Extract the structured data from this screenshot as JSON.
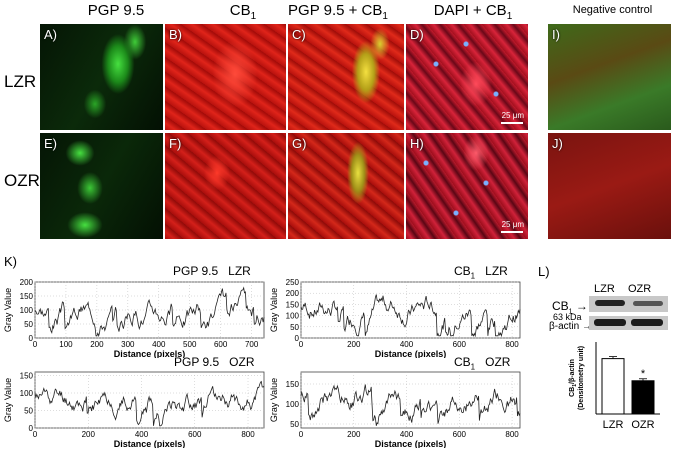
{
  "columns": {
    "pgp": "PGP 9.5",
    "cb": "CB",
    "cb_sub": "1",
    "merge_a": "PGP 9.5 + CB",
    "merge_sub": "1",
    "dapi_a": "DAPI + CB",
    "dapi_sub": "1",
    "neg": "Negative control"
  },
  "rows": {
    "lzr": "LZR",
    "ozr": "OZR"
  },
  "panels": {
    "A": "A)",
    "B": "B)",
    "C": "C)",
    "D": "D)",
    "E": "E)",
    "F": "F)",
    "G": "G)",
    "H": "H)",
    "I": "I)",
    "J": "J)"
  },
  "scale_bar": "25 μm",
  "section_k": "K)",
  "section_l": "L)",
  "profiles": [
    {
      "title_a": "PGP 9.5",
      "title_b": "LZR",
      "sub": "",
      "ylabel": "Gray Value",
      "xlabel": "Distance (pixels)",
      "yticks": [
        "0",
        "50",
        "100",
        "150",
        "200"
      ],
      "ymax": 200,
      "xticks": [
        "0",
        "100",
        "200",
        "300",
        "400",
        "500",
        "600",
        "700"
      ],
      "xmax": 740,
      "seed": 3
    },
    {
      "title_a": "CB",
      "title_b": "LZR",
      "sub": "1",
      "ylabel": "Gray Value",
      "xlabel": "Distance (pixels)",
      "yticks": [
        "0",
        "50",
        "100",
        "150",
        "200",
        "250"
      ],
      "ymax": 250,
      "xticks": [
        "0",
        "200",
        "400",
        "600",
        "800"
      ],
      "xmax": 830,
      "seed": 7
    },
    {
      "title_a": "PGP 9.5",
      "title_b": "OZR",
      "sub": "",
      "ylabel": "Gray Value",
      "xlabel": "Distance (pixels)",
      "yticks": [
        "0",
        "50",
        "100",
        "150"
      ],
      "ymax": 160,
      "xticks": [
        "0",
        "200",
        "400",
        "600",
        "800"
      ],
      "xmax": 860,
      "seed": 11
    },
    {
      "title_a": "CB",
      "title_b": "OZR",
      "sub": "1",
      "ylabel": "Gray Value",
      "xlabel": "Distance (pixels)",
      "yticks": [
        "50",
        "100",
        "150"
      ],
      "ymax": 180,
      "ymin": 40,
      "xticks": [
        "0",
        "200",
        "400",
        "600",
        "800"
      ],
      "xmax": 830,
      "seed": 19
    }
  ],
  "western": {
    "col_lzr": "LZR",
    "col_ozr": "OZR",
    "cb_label": "CB",
    "cb_sub": "1",
    "kda": "63 kDa",
    "actin": "β-actin",
    "ylabel_a": "CB",
    "ylabel_sub": "1",
    "ylabel_b": "/β-actin",
    "ylabel_c": "(Densitometry unit)",
    "bar_labels": [
      "LZR",
      "OZR"
    ],
    "star": "*"
  },
  "chart_data": {
    "type": "bar",
    "categories": [
      "LZR",
      "OZR"
    ],
    "values": [
      1.0,
      0.6
    ],
    "annotations": [
      "",
      "*"
    ]
  }
}
